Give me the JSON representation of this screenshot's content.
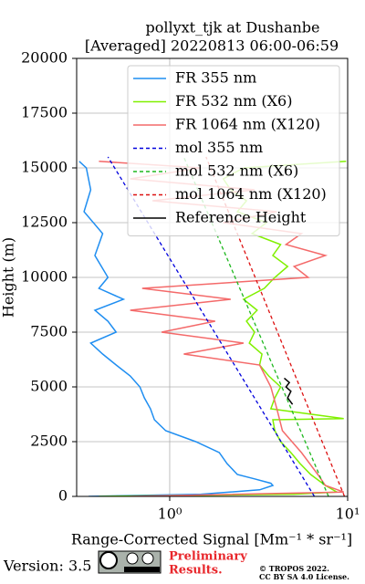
{
  "chart_data": {
    "type": "line",
    "title": [
      "pollyxt_tjk at Dushanbe",
      "[Averaged] 20220813 06:00-06:59"
    ],
    "xlabel": "Range-Corrected Signal [Mm⁻¹ * sr⁻¹]",
    "ylabel": "Height (m)",
    "xscale": "log",
    "xlim": [
      0.3,
      10
    ],
    "xticks": [
      {
        "value": 1,
        "label": "10⁰"
      },
      {
        "value": 10,
        "label": "10¹"
      }
    ],
    "ylim": [
      0,
      20000
    ],
    "yticks": [
      0,
      2500,
      5000,
      7500,
      10000,
      12500,
      15000,
      17500,
      20000
    ],
    "grid": true,
    "legend": "upper right",
    "series": [
      {
        "name": "FR 355 nm",
        "color": "#1f8ef1",
        "dash": false,
        "y": [
          0,
          100,
          300,
          500,
          600,
          800,
          1000,
          1500,
          2000,
          2500,
          3000,
          3500,
          4000,
          4500,
          5000,
          5500,
          6000,
          6500,
          7000,
          7500,
          8000,
          8500,
          9000,
          9500,
          10000,
          11000,
          12000,
          13000,
          14000,
          15000,
          15300
        ],
        "x": [
          0.35,
          1.5,
          3.2,
          3.8,
          3.7,
          3.0,
          2.4,
          2.1,
          1.9,
          1.4,
          0.95,
          0.82,
          0.78,
          0.72,
          0.68,
          0.6,
          0.5,
          0.42,
          0.36,
          0.5,
          0.45,
          0.38,
          0.55,
          0.4,
          0.45,
          0.38,
          0.42,
          0.33,
          0.36,
          0.34,
          0.31
        ]
      },
      {
        "name": "FR 532 nm (X6)",
        "color": "#80f000",
        "dash": false,
        "y": [
          0,
          100,
          200,
          500,
          1000,
          1500,
          2000,
          2500,
          3000,
          3500,
          3550,
          4000,
          4500,
          5000,
          5500,
          6000,
          6500,
          7000,
          7500,
          8000,
          8500,
          9000,
          9500,
          10000,
          10500,
          11000,
          11500,
          12000,
          12500,
          13000,
          13500,
          14000,
          14500,
          15000,
          15300
        ],
        "x": [
          0.4,
          5,
          8.7,
          7.5,
          6.2,
          5.4,
          4.8,
          4.2,
          3.9,
          3.8,
          9.5,
          3.7,
          3.9,
          4.2,
          3.6,
          3.2,
          3.3,
          2.8,
          3.0,
          2.7,
          3.1,
          2.6,
          3.4,
          3.9,
          4.6,
          3.8,
          4.2,
          2.9,
          3.5,
          2.4,
          2.7,
          2.2,
          2.0,
          2.6,
          9.8
        ]
      },
      {
        "name": "FR 1064 nm (X120)",
        "color": "#f46a6a",
        "dash": false,
        "y": [
          0,
          200,
          500,
          1000,
          2000,
          3000,
          4000,
          5000,
          6000,
          6500,
          7000,
          7500,
          8000,
          8500,
          9000,
          9500,
          10000,
          10500,
          11000,
          11500,
          12000,
          12500,
          13000,
          13500,
          14000,
          14500,
          15000,
          15300
        ],
        "x": [
          0.6,
          9.5,
          7.5,
          6.8,
          5.5,
          4.3,
          4.0,
          3.7,
          3.2,
          1.2,
          2.6,
          0.9,
          1.8,
          0.6,
          2.2,
          0.7,
          6.0,
          5.0,
          7.5,
          4.5,
          5.5,
          2.0,
          4.0,
          0.8,
          3.0,
          0.6,
          1.5,
          0.4
        ]
      },
      {
        "name": "mol 355 nm",
        "color": "#0000dd",
        "dash": true,
        "y": [
          0,
          15500
        ],
        "x": [
          6.5,
          0.45
        ]
      },
      {
        "name": "mol 532 nm (X6)",
        "color": "#1fb81f",
        "dash": true,
        "y": [
          0,
          15500
        ],
        "x": [
          7.8,
          1.2
        ]
      },
      {
        "name": "mol 1064 nm (X120)",
        "color": "#dd1111",
        "dash": true,
        "y": [
          0,
          15500
        ],
        "x": [
          9.6,
          1.6
        ]
      },
      {
        "name": "Reference Height",
        "color": "#000000",
        "dash": false,
        "y": [
          4200,
          4500,
          4800,
          5000,
          5200,
          5400
        ],
        "x": [
          4.9,
          4.6,
          4.8,
          4.5,
          4.7,
          4.4
        ]
      }
    ],
    "version": "Version: 3.5",
    "notice": [
      "Preliminary",
      "Results."
    ],
    "license": [
      "© TROPOS 2022.",
      "CC BY SA 4.0 License."
    ]
  }
}
